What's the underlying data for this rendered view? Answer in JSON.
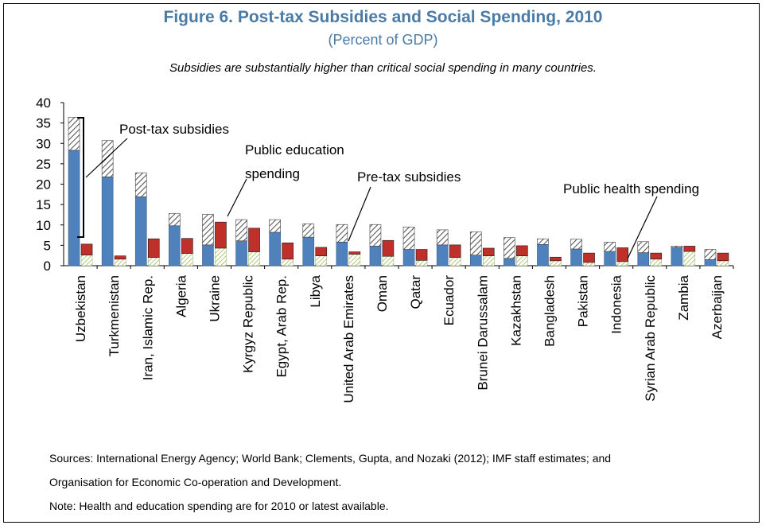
{
  "header": {
    "title": "Figure 6. Post-tax Subsidies and Social Spending, 2010",
    "subtitle": "(Percent of GDP)",
    "caption": "Subsidies are substantially higher than critical social spending in many countries."
  },
  "chart_data": {
    "type": "bar",
    "title": "Figure 6. Post-tax Subsidies and Social Spending, 2010",
    "subtitle": "(Percent of GDP)",
    "ylim": [
      0,
      40
    ],
    "yticks": [
      0,
      5,
      10,
      15,
      20,
      25,
      30,
      35,
      40
    ],
    "categories": [
      "Uzbekistan",
      "Turkmenistan",
      "Iran, Islamic Rep.",
      "Algeria",
      "Ukraine",
      "Kyrgyz Republic",
      "Egypt, Arab Rep.",
      "Libya",
      "United Arab Emirates",
      "Oman",
      "Qatar",
      "Ecuador",
      "Brunei Darussalam",
      "Kazakhstan",
      "Bangladesh",
      "Pakistan",
      "Indonesia",
      "Syrian Arab Republic",
      "Zambia",
      "Azerbaijan"
    ],
    "subsidies": {
      "pre_tax": [
        28.3,
        21.8,
        16.9,
        9.8,
        5.1,
        6.1,
        8.2,
        7.0,
        5.8,
        4.8,
        4.0,
        5.1,
        2.6,
        1.8,
        5.2,
        4.1,
        3.5,
        3.2,
        4.5,
        1.5
      ],
      "post_tax": [
        36.4,
        30.7,
        22.8,
        12.8,
        12.6,
        11.3,
        11.3,
        10.3,
        10.1,
        10.1,
        9.5,
        8.8,
        8.3,
        6.9,
        6.6,
        6.5,
        5.8,
        5.9,
        4.8,
        4.0
      ]
    },
    "social_spending": {
      "public_health": [
        2.6,
        1.6,
        2.0,
        3.0,
        4.3,
        3.4,
        1.6,
        2.4,
        2.8,
        2.3,
        1.3,
        2.0,
        2.4,
        2.4,
        1.2,
        0.8,
        1.0,
        1.6,
        3.5,
        1.2
      ],
      "public_education": [
        5.3,
        2.4,
        6.6,
        6.7,
        10.7,
        9.2,
        5.6,
        4.5,
        3.4,
        6.2,
        4.0,
        5.1,
        4.3,
        4.9,
        2.1,
        3.1,
        4.4,
        3.1,
        4.8,
        3.1
      ]
    },
    "colors": {
      "pre_tax": "#4f81bd",
      "post_tax_hatch": "#595959",
      "public_education": "#c0302a",
      "public_health_hatch": "#9bbb59"
    },
    "annotations": [
      "Post-tax subsidies",
      "Public education spending",
      "Pre-tax subsidies",
      "Public health spending"
    ],
    "grid": false,
    "legend": "none"
  },
  "annotations": {
    "post_tax": "Post-tax subsidies",
    "education_line1": "Public education",
    "education_line2": "spending",
    "pre_tax": "Pre-tax subsidies",
    "health": "Public health spending"
  },
  "sources": {
    "line1": "Sources: International Energy Agency; World Bank; Clements, Gupta, and Nozaki (2012); IMF staff estimates; and",
    "line2": "Organisation for Economic Co-operation and Development.",
    "note": "Note: Health and education spending are for 2010 or latest available."
  }
}
